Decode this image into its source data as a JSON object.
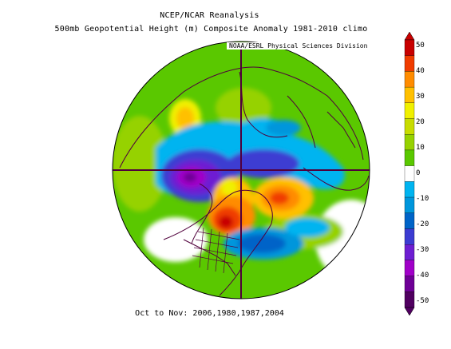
{
  "header": {
    "line1": "NCEP/NCAR Reanalysis",
    "line2": "500mb Geopotential Height (m) Composite Anomaly 1981-2010 climo",
    "credit": "NOAA/ESRL Physical Sciences Division"
  },
  "footer": {
    "period": "Oct to Nov: 2006,1980,1987,2004"
  },
  "colorbar": {
    "ticks": [
      "50",
      "40",
      "30",
      "20",
      "10",
      "0",
      "-10",
      "-20",
      "-30",
      "-40",
      "-50"
    ],
    "colors": [
      "#c80000",
      "#f03c00",
      "#ff8c00",
      "#ffc000",
      "#f0f000",
      "#c8dc00",
      "#96d200",
      "#5ac800",
      "#ffffff",
      "#00b4f0",
      "#0096dc",
      "#0064c8",
      "#3c3cd2",
      "#6e1ed2",
      "#a000c8",
      "#6e0096",
      "#500060"
    ]
  },
  "map": {
    "projection": "north polar stereographic",
    "background_color": "#5ac800",
    "coast_color": "#50003c"
  }
}
